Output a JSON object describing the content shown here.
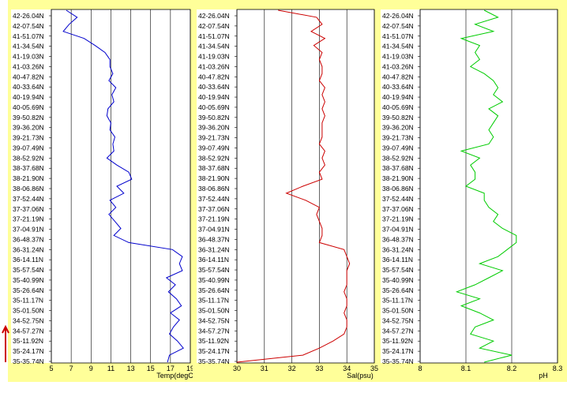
{
  "latitude_labels": [
    "42-26.04N",
    "42-07.54N",
    "41-51.07N",
    "41-34.54N",
    "41-19.03N",
    "41-03.26N",
    "40-47.82N",
    "40-33.64N",
    "40-19.94N",
    "40-05.69N",
    "39-50.82N",
    "39-36.20N",
    "39-21.73N",
    "39-07.49N",
    "38-52.92N",
    "38-37.68N",
    "38-21.90N",
    "38-06.86N",
    "37-52.44N",
    "37-37.06N",
    "37-21.19N",
    "37-04.91N",
    "36-48.37N",
    "36-31.24N",
    "36-14.11N",
    "35-57.54N",
    "35-40.99N",
    "35-26.64N",
    "35-11.17N",
    "35-01.50N",
    "34-52.75N",
    "34-57.27N",
    "35-11.92N",
    "35-24.17N",
    "35-35.74N"
  ],
  "colors": {
    "frame": "#ffff99",
    "grid": "#000000",
    "arrow": "#cc0000"
  },
  "arrow_icon": "up-arrow-icon",
  "chart_data": [
    {
      "type": "line",
      "xlabel": "Temp(degC)",
      "xlim": [
        5,
        19
      ],
      "xticks": [
        "5",
        "7",
        "9",
        "11",
        "13",
        "15",
        "17",
        "19"
      ],
      "grid": "vertical",
      "color": "#0000cc",
      "series": [
        {
          "values": [
            6.5,
            7.6,
            6.8,
            6.2,
            8.3,
            9.4,
            10.4,
            10.9,
            10.9,
            11.2,
            10.8,
            11.5,
            11.1,
            11.3,
            10.7,
            10.6,
            11.0,
            10.9,
            11.4,
            11.2,
            11.3,
            10.6,
            11.6,
            12.8,
            13.1,
            11.6,
            12.3,
            10.9,
            11.5,
            10.8,
            11.4,
            12.0,
            11.3,
            12.8,
            17.2,
            18.2,
            17.9,
            18.2,
            16.6,
            17.5,
            16.8,
            17.6,
            18.1,
            17.0,
            17.9,
            17.3,
            16.9,
            17.7,
            18.3,
            16.9,
            16.7
          ]
        }
      ]
    },
    {
      "type": "line",
      "xlabel": "Sal(psu)",
      "xlim": [
        30,
        35
      ],
      "xticks": [
        "30",
        "31",
        "32",
        "33",
        "34",
        "35"
      ],
      "grid": "vertical",
      "color": "#cc0000",
      "series": [
        {
          "values": [
            31.5,
            32.9,
            33.1,
            32.7,
            33.2,
            32.8,
            33.1,
            33.0,
            33.1,
            33.1,
            33.0,
            33.2,
            33.1,
            33.2,
            33.1,
            33.2,
            33.1,
            33.1,
            33.1,
            33.0,
            33.2,
            33.1,
            33.2,
            33.0,
            33.1,
            32.4,
            31.8,
            32.5,
            33.0,
            32.9,
            33.0,
            33.1,
            33.1,
            33.0,
            33.9,
            34.0,
            34.1,
            34.0,
            34.0,
            34.0,
            33.9,
            34.0,
            34.0,
            33.9,
            34.0,
            34.0,
            33.9,
            33.5,
            33.0,
            32.4,
            30.0
          ]
        }
      ]
    },
    {
      "type": "line",
      "xlabel": "pH",
      "xlim": [
        8,
        8.3
      ],
      "xticks": [
        "8",
        "8.1",
        "8.2",
        "8.3"
      ],
      "grid": "vertical",
      "color": "#00cc00",
      "series": [
        {
          "values": [
            8.14,
            8.17,
            8.12,
            8.16,
            8.09,
            8.13,
            8.12,
            8.13,
            8.11,
            8.14,
            8.16,
            8.17,
            8.16,
            8.18,
            8.15,
            8.17,
            8.16,
            8.15,
            8.16,
            8.15,
            8.09,
            8.13,
            8.11,
            8.12,
            8.12,
            8.1,
            8.14,
            8.14,
            8.15,
            8.17,
            8.16,
            8.18,
            8.21,
            8.21,
            8.19,
            8.17,
            8.13,
            8.18,
            8.15,
            8.12,
            8.08,
            8.13,
            8.09,
            8.13,
            8.16,
            8.12,
            8.11,
            8.16,
            8.13,
            8.2,
            8.14
          ]
        }
      ]
    }
  ]
}
